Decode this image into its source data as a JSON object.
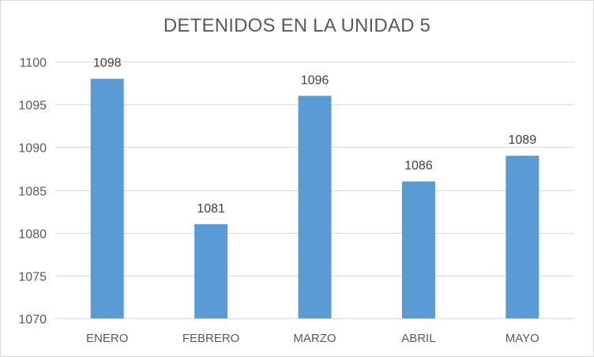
{
  "chart_data": {
    "type": "bar",
    "title": "DETENIDOS EN LA UNIDAD 5",
    "xlabel": "",
    "ylabel": "",
    "categories": [
      "ENERO",
      "FEBRERO",
      "MARZO",
      "ABRIL",
      "MAYO"
    ],
    "values": [
      1098,
      1081,
      1096,
      1086,
      1089
    ],
    "ylim": [
      1070,
      1100
    ],
    "yticks": [
      1070,
      1075,
      1080,
      1085,
      1090,
      1095,
      1100
    ],
    "grid": true,
    "legend": "none",
    "bar_color": "#5b9bd5",
    "grid_color": "#d9d9d9",
    "text_color": "#595959"
  }
}
